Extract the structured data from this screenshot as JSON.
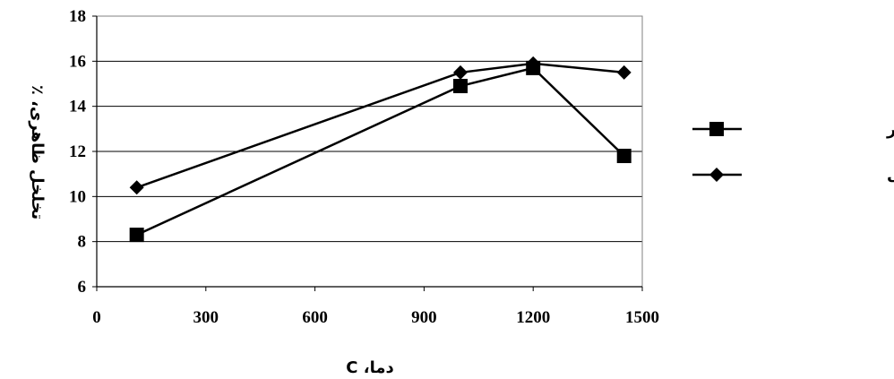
{
  "chart_data": {
    "type": "line",
    "title": "",
    "xlabel": "دما، C",
    "ylabel": "تخلخل ظاهری، ٪",
    "xlim": [
      0,
      1500
    ],
    "ylim": [
      6,
      18
    ],
    "xticks": [
      0,
      300,
      600,
      900,
      1200,
      1500
    ],
    "yticks": [
      6,
      8,
      10,
      12,
      14,
      16,
      18
    ],
    "grid": "horizontal",
    "legend_position": "right",
    "series": [
      {
        "name": "آندالوزیت ملایر",
        "marker": "square",
        "color": "#000000",
        "points": [
          {
            "x": 110,
            "y": 8.3
          },
          {
            "x": 1000,
            "y": 14.9
          },
          {
            "x": 1200,
            "y": 15.7
          },
          {
            "x": 1450,
            "y": 11.8
          }
        ]
      },
      {
        "name": "آندالوزیت خارجی",
        "marker": "diamond",
        "color": "#000000",
        "points": [
          {
            "x": 110,
            "y": 10.4
          },
          {
            "x": 1000,
            "y": 15.5
          },
          {
            "x": 1200,
            "y": 15.9
          },
          {
            "x": 1450,
            "y": 15.5
          }
        ]
      }
    ]
  }
}
